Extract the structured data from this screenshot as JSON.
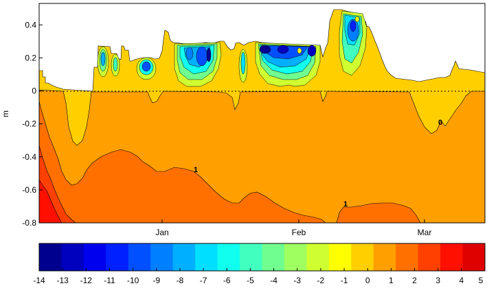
{
  "chart_data": {
    "type": "heatmap",
    "title": "",
    "xlabel": "",
    "ylabel": "m",
    "ylim": [
      -0.8,
      0.53
    ],
    "y_ticks": [
      0.4,
      0.2,
      0,
      -0.2,
      -0.4,
      -0.6,
      -0.8
    ],
    "y_tick_labels": [
      "0.4",
      "0.2",
      "0",
      "-0.2",
      "-0.4",
      "-0.6",
      "-0.8"
    ],
    "x_tick_labels": [
      "Jan",
      "Feb",
      "Mar"
    ],
    "reference_line": {
      "y": 0,
      "style": "dotted"
    },
    "contour_labels": [
      "1",
      "1",
      "0"
    ],
    "colorbar": {
      "ticks": [
        "-14",
        "-13",
        "-12",
        "-11",
        "-10",
        "-9",
        "-8",
        "-7",
        "-6",
        "-5",
        "-4",
        "-3",
        "-2",
        "-1",
        "0",
        "1",
        "2",
        "3",
        "4",
        "5"
      ],
      "colors": [
        "#00008f",
        "#0000bf",
        "#0000ef",
        "#0020ff",
        "#0050ff",
        "#0080ff",
        "#00afff",
        "#00dfff",
        "#10ffef",
        "#40ffbf",
        "#70ff8f",
        "#9fff60",
        "#cfff30",
        "#ffff00",
        "#ffcf00",
        "#ff9f00",
        "#ff7000",
        "#ff4000",
        "#ff1000",
        "#df0000"
      ]
    },
    "bands": [
      {
        "name": "",
        "level_range": [
          -1,
          0
        ],
        "color": "#ffcf00"
      },
      {
        "name": "",
        "level_range": [
          0,
          1
        ],
        "color": "#ff9f00"
      },
      {
        "name": "",
        "level_range": [
          1,
          2
        ],
        "color": "#ff7000"
      },
      {
        "name": "",
        "level_range": [
          2,
          3
        ],
        "color": "#ff4000"
      },
      {
        "name": "",
        "level_range": [
          3,
          4
        ],
        "color": "#ff1000"
      }
    ]
  }
}
